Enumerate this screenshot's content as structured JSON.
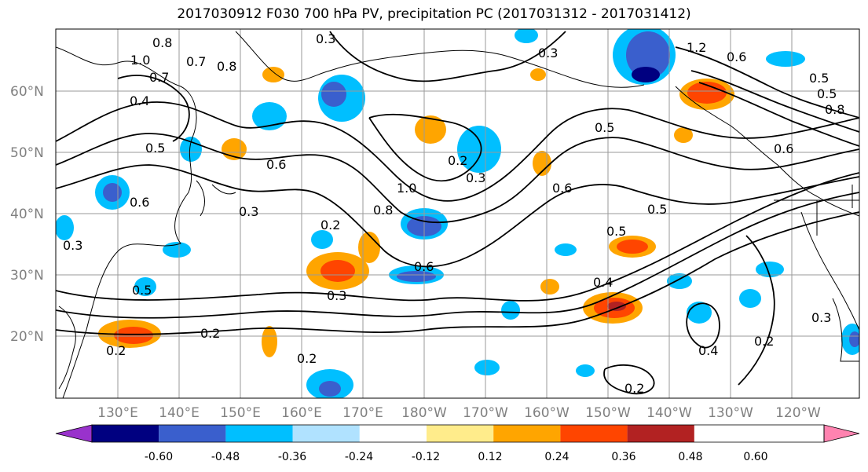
{
  "title": "2017030912 F030 700 hPa PV, precipitation PC (2017031312 - 2017031412)",
  "lat_labels": [
    "60°N",
    "50°N",
    "40°N",
    "30°N",
    "20°N"
  ],
  "lon_labels": [
    "130°E",
    "140°E",
    "150°E",
    "160°E",
    "170°E",
    "180°W",
    "170°W",
    "160°W",
    "150°W",
    "140°W",
    "130°W",
    "120°W"
  ],
  "colorbar": {
    "colors": [
      "#9932cc",
      "#000080",
      "#3a5fcd",
      "#00bfff",
      "#b0e2ff",
      "#ffffff",
      "#ffec8b",
      "#ffa500",
      "#ff4500",
      "#b22222",
      "#ff83b0"
    ],
    "tick_labels": [
      "-0.60",
      "-0.48",
      "-0.36",
      "-0.24",
      "-0.12",
      "0.12",
      "0.24",
      "0.36",
      "0.48",
      "0.60"
    ]
  },
  "contour_labels": [
    "1.0",
    "0.8",
    "0.7",
    "0.8",
    "0.3",
    "0.7",
    "0.4",
    "0.5",
    "0.6",
    "0.6",
    "0.3",
    "0.2",
    "0.3",
    "0.5",
    "0.2",
    "0.2",
    "0.3",
    "0.6",
    "0.8",
    "1.0",
    "0.2",
    "0.6",
    "0.5",
    "0.5",
    "0.4",
    "0.5",
    "0.3",
    "0.2",
    "0.4",
    "0.2",
    "0.2",
    "1.2",
    "0.6",
    "0.5",
    "0.3",
    "0.5",
    "0.6",
    "0.8",
    "0.3"
  ]
}
